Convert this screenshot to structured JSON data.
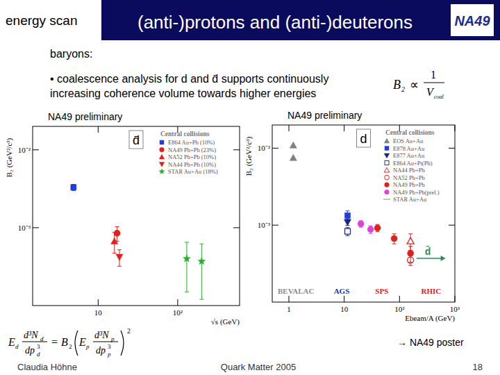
{
  "slide": {
    "section": "energy scan",
    "title": "(anti-)protons and (anti-)deuterons",
    "logo": "NA49",
    "heading": "baryons:",
    "bullet": [
      "• coalescence analysis for d and d̄ supports continuously",
      "increasing coherence volume towards higher energies"
    ],
    "formula_top": {
      "lhs": "B",
      "lhs_sub": "2",
      "relation": "∝",
      "numerator": "1",
      "denominator": "V",
      "denominator_sub": "coal"
    },
    "formula_bottom": {
      "lhs_factor": "E",
      "lhs_factor_sub": "d",
      "lhs_num": "d³N",
      "lhs_num_sub": "d",
      "lhs_den": "dp",
      "lhs_den_sub": "d",
      "lhs_den_sup": "3",
      "equals": "=",
      "coefficient": "B",
      "coefficient_sub": "2",
      "rhs_factor": "E",
      "rhs_factor_sub": "p",
      "rhs_num": "d³N",
      "rhs_num_sub": "p",
      "rhs_den": "dp",
      "rhs_den_sub": "p",
      "rhs_den_sup": "3",
      "power": "2"
    },
    "poster_note": "→ NA49 poster",
    "footer": {
      "author": "Claudia Höhne",
      "event": "Quark Matter 2005",
      "page": 18
    }
  },
  "chart_data": [
    {
      "type": "scatter",
      "subtitle": "NA49 preliminary",
      "label": "d̄",
      "legend_title": "Central collisions",
      "legend": "top-right",
      "log": true,
      "x_label": "√s (GeV)",
      "y_label": "B₂ (GeV²/c³)",
      "xlim": [
        1.5,
        600
      ],
      "ylim": [
        0.0001,
        0.02
      ],
      "xticks": [
        10,
        {
          "value": 100,
          "label": "10²"
        }
      ],
      "yticks": [
        {
          "value": 0.001,
          "label": "10⁻³"
        },
        {
          "value": 0.01,
          "label": "10⁻²"
        }
      ],
      "series": [
        {
          "name": "E864 Au+Pb (10%)",
          "color": "#1f3fd6",
          "marker": "square",
          "x": [
            4.9
          ],
          "values": [
            0.0033
          ],
          "errors": [
            0.0003
          ]
        },
        {
          "name": "NA49 Pb+Pb (23%)",
          "color": "#e0201b",
          "marker": "circle",
          "x": [
            17.3
          ],
          "values": [
            0.00085
          ],
          "errors": [
            0.00018
          ]
        },
        {
          "name": "NA52 Pb+Pb (10%)",
          "color": "#e0201b",
          "marker": "triangle-up",
          "x": [
            16
          ],
          "values": [
            0.00067
          ],
          "errors": [
            0.0002
          ]
        },
        {
          "name": "NA44 Pb+Pb (10%)",
          "color": "#e0201b",
          "marker": "triangle-down",
          "x": [
            18.5
          ],
          "values": [
            0.00042
          ],
          "errors": [
            0.0001
          ]
        },
        {
          "name": "STAR Au+Au (18%)",
          "color": "#22b02a",
          "marker": "star",
          "x": [
            130,
            200
          ],
          "values": [
            0.0004,
            0.00037
          ],
          "errors": [
            0.00025,
            0.00025
          ]
        }
      ]
    },
    {
      "type": "scatter",
      "subtitle": "NA49 preliminary",
      "label": "d",
      "legend_title": "Central collisions",
      "legend": "top-right",
      "log": true,
      "x_label": "Ebeam/A (GeV)",
      "y_label": "B₂ (GeV²/c³)",
      "xlim": [
        0.5,
        1000
      ],
      "ylim": [
        0.0001,
        0.02
      ],
      "xticks": [
        1,
        10,
        {
          "value": 100,
          "label": "10²"
        },
        {
          "value": 1000,
          "label": "10³"
        }
      ],
      "yticks": [
        {
          "value": 0.001,
          "label": "10⁻³"
        },
        {
          "value": 0.01,
          "label": "10⁻²"
        }
      ],
      "series": [
        {
          "name": "EOS Au+Au",
          "color": "#808080",
          "marker": "triangle-up",
          "x": [
            1.2,
            1.2
          ],
          "values": [
            0.0109,
            0.0075
          ],
          "errors": [
            0,
            0
          ]
        },
        {
          "name": "E878 Au+Au",
          "color": "#1f3fd6",
          "marker": "square",
          "x": [
            11.5
          ],
          "values": [
            0.00133
          ],
          "errors": [
            0.0002
          ]
        },
        {
          "name": "E877 Au+Au",
          "color": "#1a237e",
          "marker": "triangle-down",
          "x": [
            11.5
          ],
          "values": [
            0.00109
          ],
          "errors": [
            0.0001
          ]
        },
        {
          "name": "E864 Au+Pt(Pb)",
          "color": "#1f2f8f",
          "marker": "open-square",
          "x": [
            11.5
          ],
          "values": [
            0.00083
          ],
          "errors": [
            0.0001
          ]
        },
        {
          "name": "NA44 Pb+Pb",
          "color": "#e0201b",
          "marker": "open-triangle",
          "x": [
            158
          ],
          "values": [
            0.00062
          ],
          "errors": [
            0.00015
          ]
        },
        {
          "name": "NA52 Pb+Pb",
          "color": "#e0201b",
          "marker": "open-circle",
          "x": [
            158
          ],
          "values": [
            0.00035
          ],
          "errors": [
            5e-05
          ]
        },
        {
          "name": "NA49 Pb+Pb",
          "color": "#e0201b",
          "marker": "circle",
          "x": [
            40,
            80,
            158
          ],
          "values": [
            0.00092,
            0.00067,
            0.00043
          ],
          "errors": [
            0.0001,
            0.0001,
            0.0001
          ]
        },
        {
          "name": "NA49 Pb+Pb(prel.)",
          "color": "#e040e0",
          "marker": "circle",
          "x": [
            20,
            30
          ],
          "values": [
            0.00104,
            0.00088
          ],
          "errors": [
            0.0001,
            0.0001
          ]
        },
        {
          "name": "STAR Au+Au",
          "color": "#999999",
          "marker": "line",
          "x": [],
          "values": [],
          "errors": []
        }
      ],
      "region_labels": [
        {
          "text": "BEVALAC",
          "color": "#8a8a8a"
        },
        {
          "text": "AGS",
          "color": "#2233aa"
        },
        {
          "text": "SPS",
          "color": "#d42020"
        },
        {
          "text": "RHIC",
          "color": "#d42020"
        }
      ],
      "arrow_label": {
        "text": "d̄",
        "value": 0.00037,
        "color": "#2e8b57"
      }
    }
  ]
}
